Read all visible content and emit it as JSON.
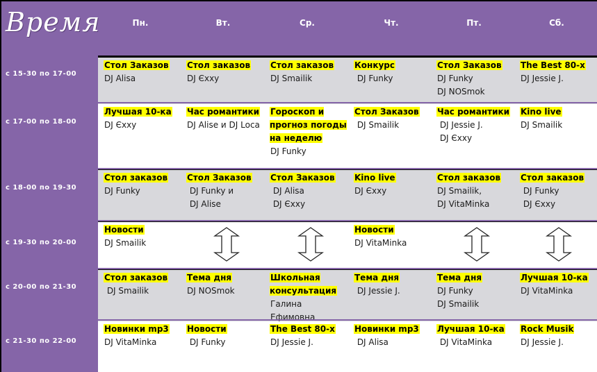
{
  "title": "Время",
  "days": [
    "Пн.",
    "Вт.",
    "Ср.",
    "Чт.",
    "Пт.",
    "Сб."
  ],
  "colors": {
    "purple": "#8565a8",
    "highlight": "#ffff00",
    "grey_row": "#d8d8dc"
  },
  "slots": [
    {
      "time": "с 15-30  по 17-00",
      "cells": [
        {
          "show": "Стол Заказов",
          "dj": [
            "DJ Alisa"
          ]
        },
        {
          "show": "Стол заказов",
          "dj": [
            "DJ Єххy"
          ]
        },
        {
          "show": "Стол заказов",
          "dj": [
            "DJ Smailik"
          ]
        },
        {
          "show": "Конкурс",
          "dj": [
            " DJ Funky"
          ]
        },
        {
          "show": "Стол Заказов",
          "dj": [
            "DJ Funky",
            "DJ NOSmok"
          ]
        },
        {
          "show": "The Best 80-х",
          "dj": [
            "DJ Jessie J."
          ]
        }
      ]
    },
    {
      "time": "с 17-00  по 18-00",
      "cells": [
        {
          "show": "Лучшая 10-ка",
          "dj": [
            "DJ Єххy"
          ]
        },
        {
          "show": "Час романтики",
          "dj": [
            "DJ Alise и DJ Loca"
          ]
        },
        {
          "show": "Гороскоп и прогноз погоды на неделю",
          "dj": [
            "DJ Funky"
          ]
        },
        {
          "show": "Стол Заказов",
          "dj": [
            " DJ Smailik"
          ]
        },
        {
          "show": "Час романтики",
          "dj": [
            " DJ Jessie J.",
            " DJ Єххy"
          ]
        },
        {
          "show": "Kino live",
          "dj": [
            "DJ Smailik"
          ]
        }
      ]
    },
    {
      "time": "с 18-00  по 19-30",
      "cells": [
        {
          "show": "Стол заказов",
          "dj": [
            "DJ Funky"
          ]
        },
        {
          "show": "Стол Заказов",
          "dj": [
            " DJ Funky и",
            " DJ Alise"
          ]
        },
        {
          "show": "Стол Заказов",
          "dj": [
            " DJ Alisa",
            " DJ Єххy"
          ]
        },
        {
          "show": "Kino live",
          "dj": [
            "DJ Єххy"
          ]
        },
        {
          "show": "Стол заказов",
          "dj": [
            "DJ Smailik,",
            "DJ VitaMinka"
          ]
        },
        {
          "show": "Стол заказов",
          "dj": [
            " DJ Funky",
            " DJ Єххy"
          ]
        }
      ]
    },
    {
      "time": "с 19-30  по 20-00",
      "cells": [
        {
          "show": "Новости",
          "dj": [
            "DJ Smailik"
          ]
        },
        {
          "show": "",
          "dj": []
        },
        {
          "show": "",
          "dj": []
        },
        {
          "show": "Новости",
          "dj": [
            "DJ VitaMinka"
          ]
        },
        {
          "show": "",
          "dj": []
        },
        {
          "show": "",
          "dj": []
        }
      ]
    },
    {
      "time": "с 20-00  по 21-30",
      "cells": [
        {
          "show": "Стол заказов",
          "dj": [
            " DJ Smailik"
          ]
        },
        {
          "show": "Тема дня",
          "dj": [
            "DJ NOSmok"
          ]
        },
        {
          "show": "Школьная консультация",
          "dj": [
            "Галина",
            "Ефимовна"
          ]
        },
        {
          "show": "Тема дня",
          "dj": [
            " DJ Jessie J."
          ]
        },
        {
          "show": "Тема дня",
          "dj": [
            "DJ Funky",
            "DJ Smailik"
          ]
        },
        {
          "show": "Лучшая 10-ка",
          "dj": [
            "DJ VitaMinka"
          ]
        }
      ]
    },
    {
      "time": "с 21-30  по 22-00",
      "cells": [
        {
          "show": "Новинки mp3",
          "dj": [
            "DJ VitaMinka"
          ]
        },
        {
          "show": "Новости",
          "dj": [
            " DJ Funky"
          ]
        },
        {
          "show": "The Best 80-х",
          "dj": [
            "DJ Jessie J."
          ]
        },
        {
          "show": "Новинки mp3",
          "dj": [
            " DJ Alisa"
          ]
        },
        {
          "show": "Лучшая 10-ка",
          "dj": [
            " DJ VitaMinka"
          ]
        },
        {
          "show": "Rock Musik",
          "dj": [
            "DJ Jessie J."
          ]
        }
      ]
    }
  ]
}
